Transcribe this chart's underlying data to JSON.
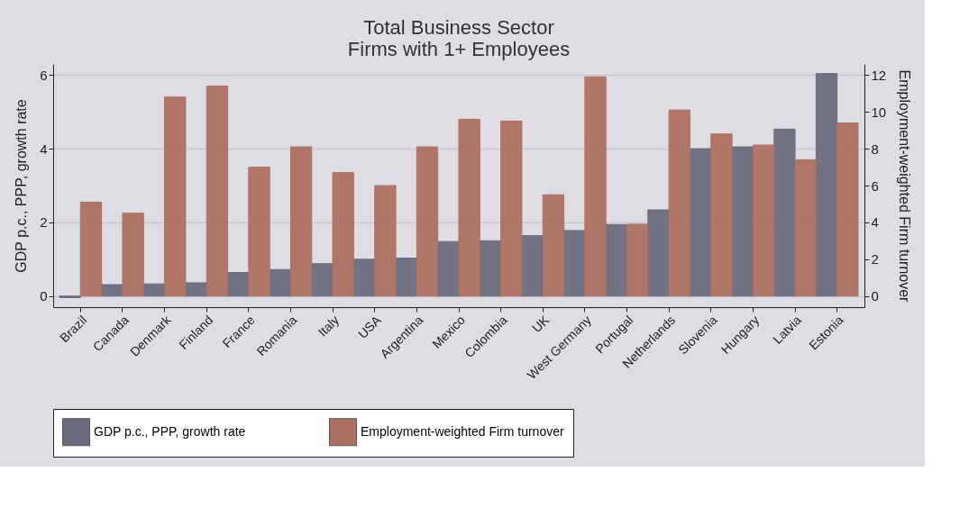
{
  "chart_data": {
    "type": "bar",
    "title": "Total Business Sector\nFirms with 1+ Employees",
    "ylabel": "GDP p.c., PPP, growth rate",
    "y2label": "Employment-weighted Firm turnover",
    "categories": [
      "Brazil",
      "Canada",
      "Denmark",
      "Finland",
      "France",
      "Romania",
      "Italy",
      "USA",
      "Argentina",
      "Mexico",
      "Colombia",
      "UK",
      "West Germany",
      "Portugal",
      "Netherlands",
      "Slovenia",
      "Hungary",
      "Latvia",
      "Estonia"
    ],
    "series": [
      {
        "name": "GDP p.c., PPP, growth rate",
        "color": "#6a6c7e",
        "values": [
          -0.04,
          0.31,
          0.33,
          0.36,
          0.64,
          0.72,
          0.88,
          1.0,
          1.03,
          1.48,
          1.5,
          1.64,
          1.78,
          1.94,
          2.34,
          4.0,
          4.05,
          4.53,
          6.04
        ]
      },
      {
        "name": "Employment-weighted Firm turnover",
        "color": "#ad7162",
        "axis": "y2",
        "values": [
          5.1,
          4.5,
          10.8,
          11.4,
          7.0,
          8.1,
          6.7,
          6.0,
          8.1,
          9.6,
          9.5,
          5.5,
          11.9,
          3.9,
          10.1,
          8.8,
          8.2,
          7.4,
          9.4
        ]
      }
    ],
    "ylim": [
      -0.3,
      6.3
    ],
    "yticks": [
      0,
      2,
      4,
      6
    ],
    "y2lim": [
      -0.6,
      12.6
    ],
    "y2ticks": [
      0,
      2,
      4,
      6,
      8,
      10,
      12
    ],
    "grid": "y",
    "legend": "bottom"
  }
}
